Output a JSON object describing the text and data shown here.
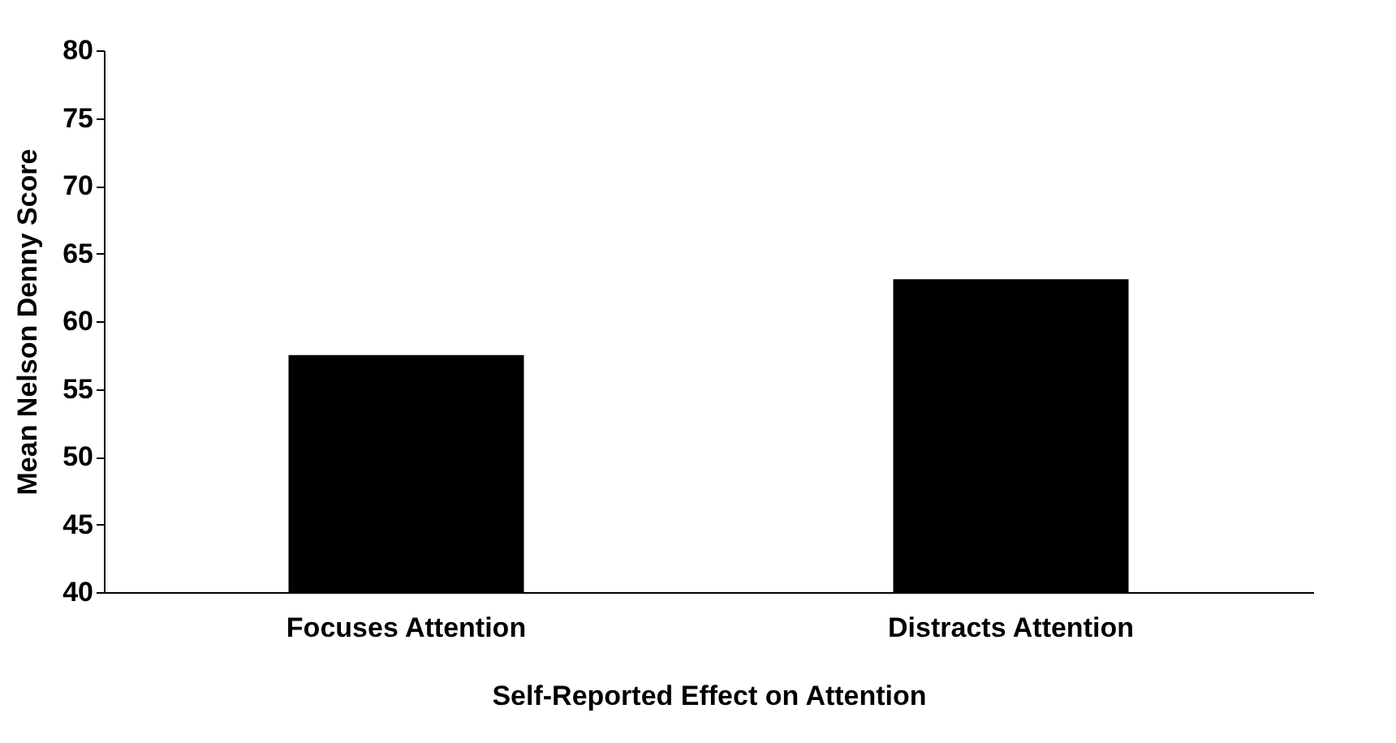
{
  "chart_data": {
    "type": "bar",
    "xlabel": "Self-Reported Effect on Attention",
    "ylabel": "Mean Nelson Denny Score",
    "categories": [
      "Focuses Attention",
      "Distracts Attention"
    ],
    "values": [
      57.5,
      63.1
    ],
    "color": "#000000",
    "ylim": [
      40,
      80
    ],
    "yticks": [
      40,
      45,
      50,
      55,
      60,
      65,
      70,
      75,
      80
    ],
    "grid": false
  }
}
